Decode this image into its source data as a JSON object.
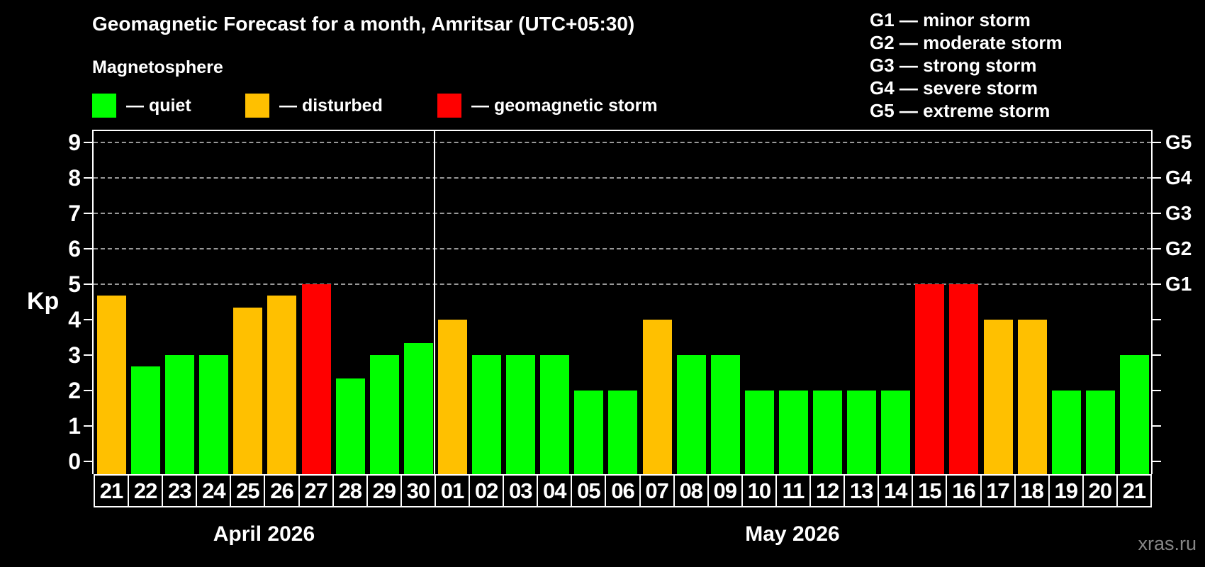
{
  "header": {
    "title": "Geomagnetic Forecast for a month, Amritsar (UTC+05:30)",
    "subtitle": "Magnetosphere"
  },
  "legend": {
    "items": [
      {
        "key": "quiet",
        "label": "— quiet",
        "color": "#00ff00"
      },
      {
        "key": "disturbed",
        "label": "— disturbed",
        "color": "#ffc000"
      },
      {
        "key": "storm",
        "label": "— geomagnetic storm",
        "color": "#ff0000"
      }
    ]
  },
  "g_scale_legend": {
    "items": [
      "G1 — minor storm",
      "G2 — moderate storm",
      "G3 — strong storm",
      "G4 — severe storm",
      "G5 — extreme storm"
    ]
  },
  "watermark": "xras.ru",
  "chart_data": {
    "type": "bar",
    "title": "Geomagnetic Forecast for a month, Amritsar (UTC+05:30)",
    "ylabel": "Kp",
    "ylim": [
      0,
      9
    ],
    "yticks": [
      0,
      1,
      2,
      3,
      4,
      5,
      6,
      7,
      8,
      9
    ],
    "gridlines_at": [
      5,
      6,
      7,
      8,
      9
    ],
    "grid": "dashed horizontal lines at Kp 5-9",
    "legend_position": "top",
    "right_axis": [
      {
        "label": "G1",
        "kp": 5
      },
      {
        "label": "G2",
        "kp": 6
      },
      {
        "label": "G3",
        "kp": 7
      },
      {
        "label": "G4",
        "kp": 8
      },
      {
        "label": "G5",
        "kp": 9
      }
    ],
    "status_colors": {
      "quiet": "#00ff00",
      "disturbed": "#ffc000",
      "storm": "#ff0000"
    },
    "months": [
      {
        "label": "April 2026",
        "bars": [
          {
            "day": "21",
            "kp": 4.67,
            "status": "disturbed"
          },
          {
            "day": "22",
            "kp": 2.67,
            "status": "quiet"
          },
          {
            "day": "23",
            "kp": 3.0,
            "status": "quiet"
          },
          {
            "day": "24",
            "kp": 3.0,
            "status": "quiet"
          },
          {
            "day": "25",
            "kp": 4.33,
            "status": "disturbed"
          },
          {
            "day": "26",
            "kp": 4.67,
            "status": "disturbed"
          },
          {
            "day": "27",
            "kp": 5.0,
            "status": "storm"
          },
          {
            "day": "28",
            "kp": 2.33,
            "status": "quiet"
          },
          {
            "day": "29",
            "kp": 3.0,
            "status": "quiet"
          },
          {
            "day": "30",
            "kp": 3.33,
            "status": "quiet"
          }
        ]
      },
      {
        "label": "May 2026",
        "bars": [
          {
            "day": "01",
            "kp": 4.0,
            "status": "disturbed"
          },
          {
            "day": "02",
            "kp": 3.0,
            "status": "quiet"
          },
          {
            "day": "03",
            "kp": 3.0,
            "status": "quiet"
          },
          {
            "day": "04",
            "kp": 3.0,
            "status": "quiet"
          },
          {
            "day": "05",
            "kp": 2.0,
            "status": "quiet"
          },
          {
            "day": "06",
            "kp": 2.0,
            "status": "quiet"
          },
          {
            "day": "07",
            "kp": 4.0,
            "status": "disturbed"
          },
          {
            "day": "08",
            "kp": 3.0,
            "status": "quiet"
          },
          {
            "day": "09",
            "kp": 3.0,
            "status": "quiet"
          },
          {
            "day": "10",
            "kp": 2.0,
            "status": "quiet"
          },
          {
            "day": "11",
            "kp": 2.0,
            "status": "quiet"
          },
          {
            "day": "12",
            "kp": 2.0,
            "status": "quiet"
          },
          {
            "day": "13",
            "kp": 2.0,
            "status": "quiet"
          },
          {
            "day": "14",
            "kp": 2.0,
            "status": "quiet"
          },
          {
            "day": "15",
            "kp": 5.0,
            "status": "storm"
          },
          {
            "day": "16",
            "kp": 5.0,
            "status": "storm"
          },
          {
            "day": "17",
            "kp": 4.0,
            "status": "disturbed"
          },
          {
            "day": "18",
            "kp": 4.0,
            "status": "disturbed"
          },
          {
            "day": "19",
            "kp": 2.0,
            "status": "quiet"
          },
          {
            "day": "20",
            "kp": 2.0,
            "status": "quiet"
          },
          {
            "day": "21",
            "kp": 3.0,
            "status": "quiet"
          }
        ]
      }
    ]
  }
}
